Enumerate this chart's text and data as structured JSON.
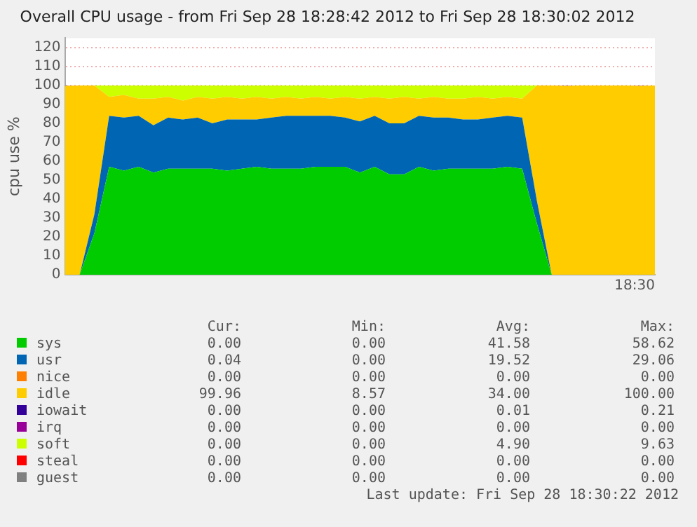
{
  "chart_data": {
    "type": "area",
    "stacked": true,
    "title": "Overall CPU usage - from Fri Sep 28 18:28:42 2012 to Fri Sep 28 18:30:02 2012",
    "ylabel": "cpu use %",
    "categories": [
      null,
      null,
      null,
      null,
      null,
      null,
      null,
      null,
      null,
      null,
      null,
      null,
      null,
      null,
      null,
      null,
      null,
      null,
      null,
      null,
      null,
      null,
      null,
      null,
      null,
      null,
      null,
      null,
      null,
      null,
      null,
      null,
      null,
      null,
      null,
      null,
      null,
      null,
      null,
      null,
      null
    ],
    "ylim": [
      0,
      125
    ],
    "yticks": [
      0,
      10,
      20,
      30,
      40,
      50,
      60,
      70,
      80,
      90,
      100,
      110,
      120
    ],
    "grid": "y",
    "legend": "bottom",
    "marker": "none",
    "series": [
      {
        "name": "sys",
        "color": "#00cc00",
        "values": [
          0,
          0,
          22,
          57,
          55,
          57,
          54,
          56,
          56,
          56,
          56,
          55,
          56,
          57,
          56,
          56,
          56,
          57,
          57,
          57,
          54,
          57,
          53,
          53,
          57,
          55,
          56,
          56,
          56,
          56,
          57,
          56,
          27,
          0,
          0,
          0,
          0,
          0,
          0,
          0,
          0
        ]
      },
      {
        "name": "usr",
        "color": "#0066b3",
        "values": [
          0,
          0,
          10,
          27,
          28,
          27,
          25,
          27,
          26,
          27,
          24,
          27,
          26,
          25,
          27,
          28,
          28,
          27,
          27,
          26,
          27,
          27,
          27,
          27,
          27,
          28,
          27,
          26,
          26,
          27,
          27,
          27,
          12,
          0,
          0,
          0,
          0,
          0,
          0,
          0,
          0
        ]
      },
      {
        "name": "nice",
        "color": "#ff8000",
        "values": [
          null,
          null,
          null,
          null,
          null,
          null,
          null,
          null,
          null,
          null,
          null,
          null,
          null,
          null,
          null,
          null,
          null,
          null,
          null,
          null,
          null,
          null,
          null,
          null,
          null,
          null,
          null,
          null,
          null,
          null,
          null,
          null,
          null,
          null,
          null,
          null,
          null,
          null,
          null,
          null,
          null
        ]
      },
      {
        "name": "idle",
        "color": "#ffcc00",
        "values": [
          99.8,
          100,
          68,
          10,
          12,
          9,
          14,
          11,
          10,
          11,
          13,
          12,
          11,
          12,
          10,
          10,
          9,
          10,
          9,
          11,
          12,
          10,
          13,
          14,
          9,
          11,
          10,
          11,
          12,
          10,
          10,
          10,
          61,
          100,
          99.8,
          100,
          100,
          100,
          100,
          99.8,
          100
        ]
      },
      {
        "name": "iowait",
        "color": "#330099",
        "values": [
          0.2,
          0,
          null,
          null,
          null,
          null,
          null,
          null,
          null,
          null,
          null,
          null,
          null,
          null,
          null,
          null,
          null,
          null,
          null,
          null,
          null,
          null,
          null,
          null,
          null,
          null,
          null,
          null,
          null,
          null,
          null,
          null,
          null,
          0,
          0.2,
          0,
          null,
          null,
          0,
          0.2,
          0
        ]
      },
      {
        "name": "irq",
        "color": "#990099",
        "values": [
          null,
          null,
          null,
          null,
          null,
          null,
          null,
          null,
          null,
          null,
          null,
          null,
          null,
          null,
          null,
          null,
          null,
          null,
          null,
          null,
          null,
          null,
          null,
          null,
          null,
          null,
          null,
          null,
          null,
          null,
          null,
          null,
          null,
          null,
          null,
          null,
          null,
          null,
          null,
          null,
          null
        ]
      },
      {
        "name": "soft",
        "color": "#ccff00",
        "values": [
          null,
          null,
          0,
          6,
          5,
          7,
          7,
          6,
          8,
          6,
          7,
          6,
          7,
          6,
          7,
          6,
          7,
          6,
          7,
          6,
          7,
          6,
          7,
          6,
          7,
          6,
          7,
          7,
          6,
          7,
          6,
          7,
          0,
          null,
          null,
          null,
          null,
          null,
          null,
          null,
          null
        ]
      },
      {
        "name": "steal",
        "color": "#ff0000",
        "values": [
          null,
          null,
          null,
          null,
          null,
          null,
          null,
          null,
          null,
          null,
          null,
          null,
          null,
          null,
          null,
          null,
          null,
          null,
          null,
          null,
          null,
          null,
          null,
          null,
          null,
          null,
          null,
          null,
          null,
          null,
          null,
          null,
          null,
          null,
          null,
          null,
          null,
          null,
          null,
          null,
          null
        ]
      },
      {
        "name": "guest",
        "color": "#808080",
        "values": [
          null,
          null,
          null,
          null,
          null,
          null,
          null,
          null,
          null,
          null,
          null,
          null,
          null,
          null,
          null,
          null,
          null,
          null,
          null,
          null,
          null,
          null,
          null,
          null,
          null,
          null,
          null,
          null,
          null,
          null,
          null,
          null,
          null,
          null,
          null,
          null,
          null,
          null,
          null,
          null,
          null
        ]
      }
    ],
    "annotations": [
      "Cur:",
      "Min:",
      "Avg:",
      "Max:",
      "0.00",
      "0.00",
      "41.58",
      "58.62",
      "0.04",
      "0.00",
      "19.52",
      "29.06",
      "0.00",
      "0.00",
      "0.00",
      "0.00",
      "99.96",
      "8.57",
      "34.00",
      "100.00",
      "0.00",
      "0.00",
      "0.01",
      "0.21",
      "0.00",
      "0.00",
      "0.00",
      "0.00",
      "0.00",
      "0.00",
      "4.90",
      "9.63",
      "0.00",
      "0.00",
      "0.00",
      "0.00",
      "0.00",
      "0.00",
      "0.00",
      "0.00",
      "Last update: Fri Sep 28 18:30:22 2012",
      "18:30"
    ]
  }
}
